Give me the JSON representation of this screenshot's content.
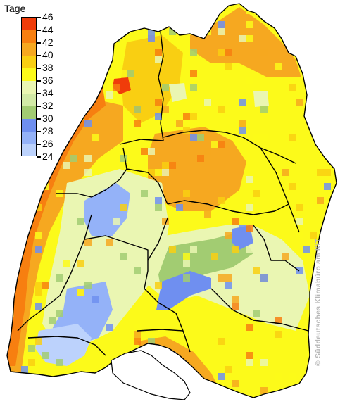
{
  "legend": {
    "title": "Tage",
    "ticks": [
      "46",
      "44",
      "42",
      "40",
      "38",
      "36",
      "34",
      "32",
      "30",
      "28",
      "26",
      "24"
    ],
    "swatch_colors": [
      "#f03c0a",
      "#f77f10",
      "#f6a820",
      "#f9cf12",
      "#fcfa1a",
      "#eaf6b2",
      "#d2eaa6",
      "#a2cc72",
      "#6f8ff0",
      "#94b2f8",
      "#bcd2fc",
      "#deeafe"
    ]
  },
  "map": {
    "colors": {
      "c42": "#f6a820",
      "c40": "#f9cf12",
      "c38": "#fcfa1a",
      "c36": "#eaf6b2",
      "c34": "#a2cc72",
      "c30": "#6f8ff0",
      "c28": "#94b2f8",
      "c26": "#bcd2fc",
      "c44": "#f77f10",
      "c46": "#f03c0a",
      "border": "#000000",
      "background": "#ffffff"
    }
  },
  "copyright": "© Süddeutsches Klimabüro am KIT"
}
